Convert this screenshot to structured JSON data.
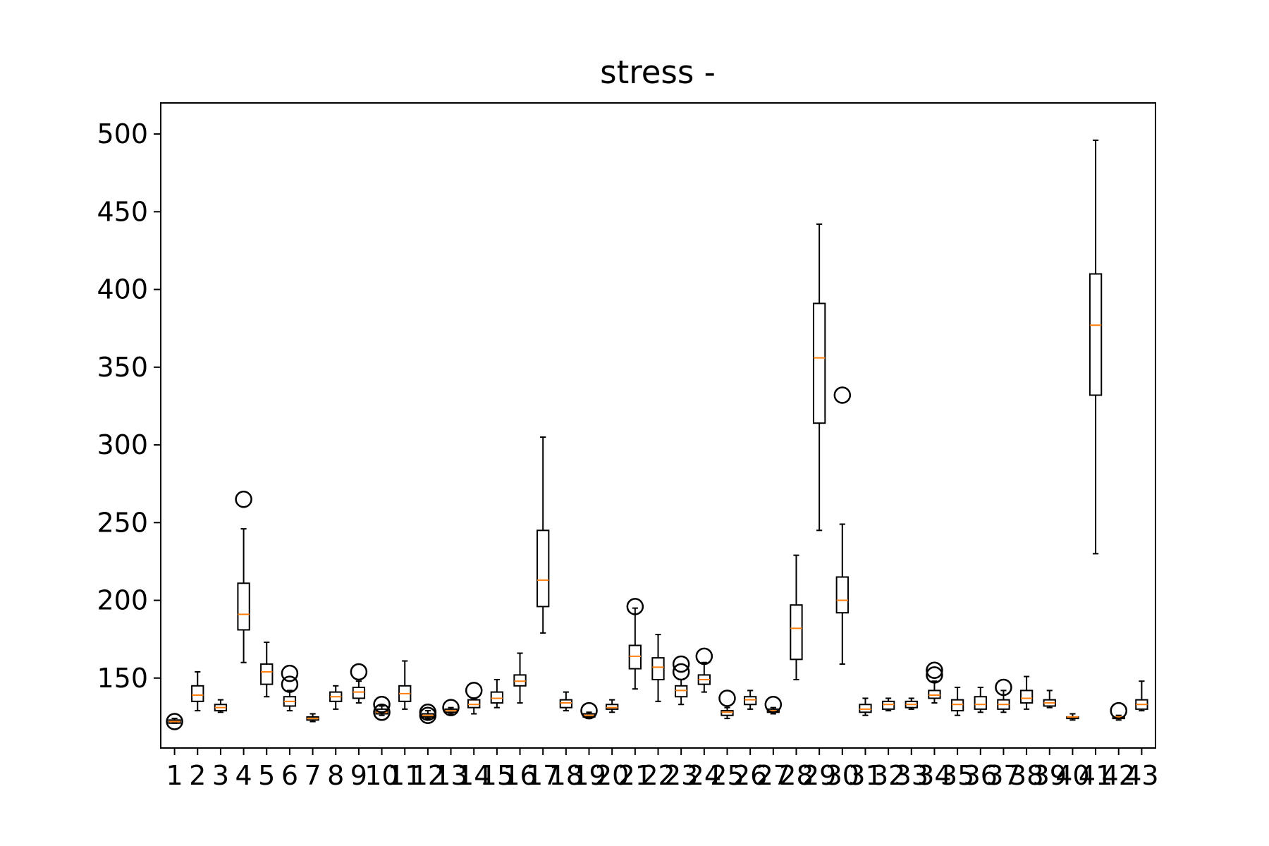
{
  "chart_data": {
    "type": "boxplot",
    "title": "stress -",
    "xlabel": "",
    "ylabel": "",
    "ylim": [
      105,
      520
    ],
    "yticks": [
      150,
      200,
      250,
      300,
      350,
      400,
      450,
      500
    ],
    "categories": [
      "1",
      "2",
      "3",
      "4",
      "5",
      "6",
      "7",
      "8",
      "9",
      "10",
      "11",
      "12",
      "13",
      "14",
      "15",
      "16",
      "17",
      "18",
      "19",
      "20",
      "21",
      "22",
      "23",
      "24",
      "25",
      "26",
      "27",
      "28",
      "29",
      "30",
      "31",
      "32",
      "33",
      "34",
      "35",
      "36",
      "37",
      "38",
      "39",
      "40",
      "41",
      "42",
      "43"
    ],
    "boxes": [
      {
        "whislo": 121,
        "q1": 121,
        "med": 122,
        "q3": 123,
        "whishi": 124,
        "fliers": [
          122
        ]
      },
      {
        "whislo": 129,
        "q1": 135,
        "med": 139,
        "q3": 145,
        "whishi": 154,
        "fliers": []
      },
      {
        "whislo": 128,
        "q1": 129,
        "med": 131,
        "q3": 133,
        "whishi": 136,
        "fliers": []
      },
      {
        "whislo": 160,
        "q1": 181,
        "med": 191,
        "q3": 211,
        "whishi": 246,
        "fliers": [
          265
        ]
      },
      {
        "whislo": 138,
        "q1": 146,
        "med": 154,
        "q3": 159,
        "whishi": 173,
        "fliers": []
      },
      {
        "whislo": 129,
        "q1": 132,
        "med": 135,
        "q3": 138,
        "whishi": 142,
        "fliers": [
          146,
          153
        ]
      },
      {
        "whislo": 122,
        "q1": 123,
        "med": 124,
        "q3": 125,
        "whishi": 127,
        "fliers": []
      },
      {
        "whislo": 130,
        "q1": 135,
        "med": 138,
        "q3": 141,
        "whishi": 145,
        "fliers": []
      },
      {
        "whislo": 134,
        "q1": 137,
        "med": 141,
        "q3": 144,
        "whishi": 148,
        "fliers": [
          154
        ]
      },
      {
        "whislo": 126,
        "q1": 127,
        "med": 128,
        "q3": 130,
        "whishi": 132,
        "fliers": [
          128,
          133
        ]
      },
      {
        "whislo": 130,
        "q1": 135,
        "med": 140,
        "q3": 145,
        "whishi": 161,
        "fliers": []
      },
      {
        "whislo": 124,
        "q1": 125,
        "med": 126,
        "q3": 127,
        "whishi": 129,
        "fliers": [
          126,
          128
        ]
      },
      {
        "whislo": 127,
        "q1": 128,
        "med": 129,
        "q3": 130,
        "whishi": 131,
        "fliers": [
          131
        ]
      },
      {
        "whislo": 127,
        "q1": 131,
        "med": 133,
        "q3": 136,
        "whishi": 137,
        "fliers": [
          142
        ]
      },
      {
        "whislo": 131,
        "q1": 134,
        "med": 137,
        "q3": 141,
        "whishi": 149,
        "fliers": []
      },
      {
        "whislo": 134,
        "q1": 145,
        "med": 148,
        "q3": 152,
        "whishi": 166,
        "fliers": []
      },
      {
        "whislo": 179,
        "q1": 196,
        "med": 213,
        "q3": 245,
        "whishi": 305,
        "fliers": []
      },
      {
        "whislo": 129,
        "q1": 131,
        "med": 134,
        "q3": 136,
        "whishi": 141,
        "fliers": []
      },
      {
        "whislo": 124,
        "q1": 125,
        "med": 126,
        "q3": 127,
        "whishi": 128,
        "fliers": [
          129
        ]
      },
      {
        "whislo": 128,
        "q1": 130,
        "med": 131,
        "q3": 133,
        "whishi": 136,
        "fliers": []
      },
      {
        "whislo": 143,
        "q1": 156,
        "med": 164,
        "q3": 171,
        "whishi": 195,
        "fliers": [
          196
        ]
      },
      {
        "whislo": 135,
        "q1": 149,
        "med": 157,
        "q3": 163,
        "whishi": 178,
        "fliers": []
      },
      {
        "whislo": 133,
        "q1": 138,
        "med": 142,
        "q3": 145,
        "whishi": 149,
        "fliers": [
          154,
          159
        ]
      },
      {
        "whislo": 141,
        "q1": 146,
        "med": 149,
        "q3": 152,
        "whishi": 160,
        "fliers": [
          164
        ]
      },
      {
        "whislo": 124,
        "q1": 126,
        "med": 128,
        "q3": 129,
        "whishi": 131,
        "fliers": [
          137
        ]
      },
      {
        "whislo": 130,
        "q1": 133,
        "med": 136,
        "q3": 138,
        "whishi": 142,
        "fliers": []
      },
      {
        "whislo": 127,
        "q1": 128,
        "med": 129,
        "q3": 130,
        "whishi": 131,
        "fliers": [
          133
        ]
      },
      {
        "whislo": 149,
        "q1": 162,
        "med": 182,
        "q3": 197,
        "whishi": 229,
        "fliers": []
      },
      {
        "whislo": 245,
        "q1": 314,
        "med": 356,
        "q3": 391,
        "whishi": 442,
        "fliers": []
      },
      {
        "whislo": 159,
        "q1": 192,
        "med": 200,
        "q3": 215,
        "whishi": 249,
        "fliers": [
          332
        ]
      },
      {
        "whislo": 126,
        "q1": 128,
        "med": 130,
        "q3": 133,
        "whishi": 137,
        "fliers": []
      },
      {
        "whislo": 129,
        "q1": 130,
        "med": 133,
        "q3": 135,
        "whishi": 137,
        "fliers": []
      },
      {
        "whislo": 130,
        "q1": 131,
        "med": 133,
        "q3": 135,
        "whishi": 137,
        "fliers": []
      },
      {
        "whislo": 134,
        "q1": 137,
        "med": 139,
        "q3": 142,
        "whishi": 148,
        "fliers": [
          152,
          155
        ]
      },
      {
        "whislo": 126,
        "q1": 129,
        "med": 133,
        "q3": 136,
        "whishi": 144,
        "fliers": []
      },
      {
        "whislo": 128,
        "q1": 130,
        "med": 133,
        "q3": 138,
        "whishi": 144,
        "fliers": []
      },
      {
        "whislo": 128,
        "q1": 130,
        "med": 133,
        "q3": 136,
        "whishi": 142,
        "fliers": [
          144
        ]
      },
      {
        "whislo": 130,
        "q1": 134,
        "med": 137,
        "q3": 142,
        "whishi": 151,
        "fliers": []
      },
      {
        "whislo": 131,
        "q1": 132,
        "med": 134,
        "q3": 136,
        "whishi": 142,
        "fliers": []
      },
      {
        "whislo": 123,
        "q1": 124,
        "med": 125,
        "q3": 125,
        "whishi": 127,
        "fliers": []
      },
      {
        "whislo": 230,
        "q1": 332,
        "med": 377,
        "q3": 410,
        "whishi": 496,
        "fliers": []
      },
      {
        "whislo": 123,
        "q1": 124,
        "med": 125,
        "q3": 125,
        "whishi": 126,
        "fliers": [
          129
        ]
      },
      {
        "whislo": 129,
        "q1": 130,
        "med": 133,
        "q3": 136,
        "whishi": 148,
        "fliers": []
      }
    ],
    "colors": {
      "box": "#000000",
      "median": "#ff7f0e",
      "background": "#ffffff"
    }
  }
}
